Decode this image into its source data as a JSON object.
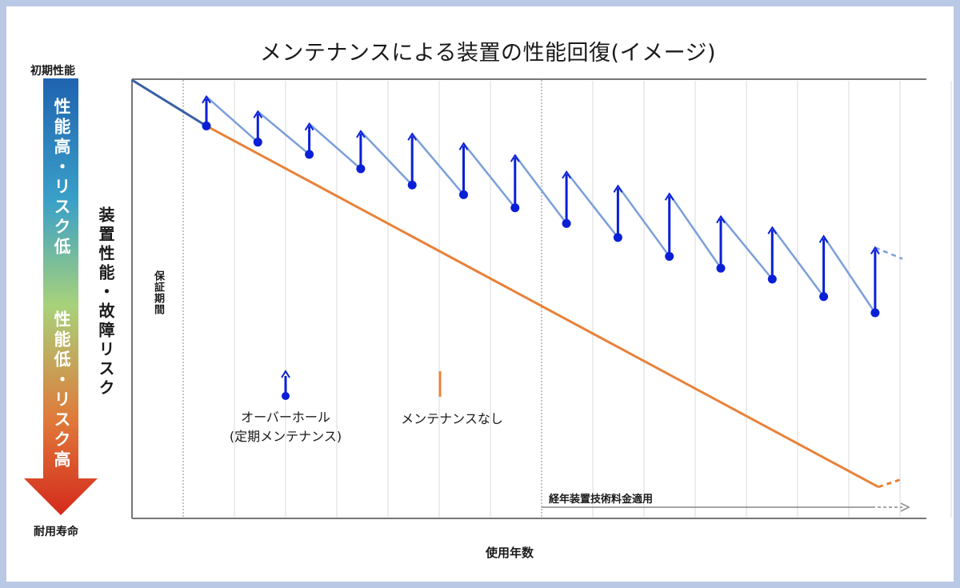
{
  "title": "メンテナンスによる装置の性能回復(イメージ)",
  "scale": {
    "top_label": "初期性能",
    "bottom_label": "耐用寿命",
    "upper_text": "性能高・リスク低",
    "lower_text": "性能低・リスク高",
    "gradient_colors": [
      "#1f63b0",
      "#3aa0c8",
      "#a8d27a",
      "#e07a3a",
      "#d42a1c"
    ]
  },
  "y_axis_label": "装置性能・故障リスク",
  "x_axis_label": "使用年数",
  "warranty_label": "保証期間",
  "legend": {
    "overhaul_line1": "オーバーホール",
    "overhaul_line2": "(定期メンテナンス)",
    "no_maintenance": "メンテナンスなし"
  },
  "arrow_label": "経年装置技術料金適用",
  "colors": {
    "overhaul_line": "#7b9fd9",
    "overhaul_marker": "#0a1fd6",
    "no_maintenance_line": "#e8823a",
    "initial_line": "#3a5fa8",
    "axis": "#666666",
    "grid": "#d9d9d9"
  },
  "chart_data": {
    "type": "line",
    "x_unit": "使用年数",
    "overhaul_count": 14,
    "overhaul_drop_per_cycle": [
      0.104,
      0.112,
      0.104,
      0.118,
      0.104,
      0.112,
      0.112,
      0.118,
      0.118,
      0.104,
      0.112,
      0.112,
      0.112
    ],
    "overhaul_before": [
      0.895,
      0.858,
      0.83,
      0.797,
      0.76,
      0.738,
      0.708,
      0.672,
      0.64,
      0.597,
      0.57,
      0.545,
      0.505,
      0.468
    ],
    "overhaul_after": [
      0.962,
      0.928,
      0.9,
      0.883,
      0.877,
      0.855,
      0.828,
      0.79,
      0.758,
      0.74,
      0.688,
      0.663,
      0.643,
      0.617
    ],
    "no_maintenance_start": 0.895,
    "no_maintenance_end": 0.07
  }
}
